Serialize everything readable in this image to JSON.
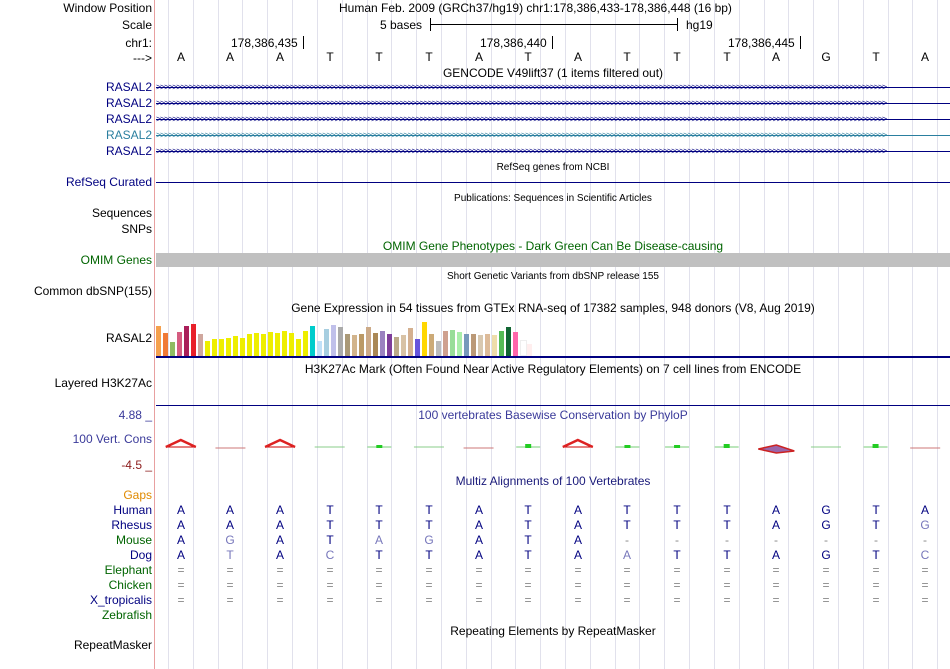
{
  "header": {
    "window_position_label": "Window Position",
    "scale_label": "Scale",
    "chrom_label": "chr1:",
    "arrow_label": "--->",
    "assembly_text": "Human Feb. 2009 (GRCh37/hg19)   chr1:178,386,433-178,386,448 (16 bp)",
    "scale_text": "5 bases",
    "db_text": "hg19",
    "positions": [
      "178,386,435",
      "178,386,440",
      "178,386,445"
    ]
  },
  "sequence": [
    "A",
    "A",
    "A",
    "T",
    "T",
    "T",
    "A",
    "T",
    "A",
    "T",
    "T",
    "T",
    "A",
    "G",
    "T",
    "A"
  ],
  "tracks": {
    "gencode_title": "GENCODE V49lift37 (1 items filtered out)",
    "gencode_items": [
      "RASAL2",
      "RASAL2",
      "RASAL2",
      "RASAL2",
      "RASAL2"
    ],
    "refseq_title": "RefSeq genes from NCBI",
    "refseq_label": "RefSeq Curated",
    "pubs_title": "Publications: Sequences in Scientific Articles",
    "sequences_label": "Sequences",
    "snps_label": "SNPs",
    "omim_title": "OMIM Gene Phenotypes - Dark Green Can Be Disease-causing",
    "omim_label": "OMIM Genes",
    "dbsnp_title": "Short Genetic Variants from dbSNP release 155",
    "dbsnp_label": "Common dbSNP(155)",
    "gtex_title": "Gene Expression in 54 tissues from GTEx RNA-seq of 17382 samples, 948 donors (V8, Aug 2019)",
    "gtex_label": "RASAL2",
    "h3k27ac_title": "H3K27Ac Mark (Often Found Near Active Regulatory Elements) on 7 cell lines from ENCODE",
    "h3k27ac_label": "Layered H3K27Ac",
    "phylop_title": "100 vertebrates Basewise Conservation by PhyloP",
    "phylop_label": "100 Vert. Cons",
    "phylop_max": "4.88 _",
    "phylop_min": "-4.5 _",
    "multiz_title": "Multiz Alignments of 100 Vertebrates",
    "gaps_label": "Gaps",
    "repeat_title": "Repeating Elements by RepeatMasker",
    "repeat_label": "RepeatMasker"
  },
  "gtex_bars": [
    {
      "h": 0.75,
      "c": "#f5a04d"
    },
    {
      "h": 0.58,
      "c": "#f07a36"
    },
    {
      "h": 0.35,
      "c": "#8fbc62"
    },
    {
      "h": 0.6,
      "c": "#d55c80"
    },
    {
      "h": 0.75,
      "c": "#aa1f5a"
    },
    {
      "h": 0.8,
      "c": "#e8202a"
    },
    {
      "h": 0.55,
      "c": "#cfa79e"
    },
    {
      "h": 0.38,
      "c": "#eeee00"
    },
    {
      "h": 0.42,
      "c": "#eeee00"
    },
    {
      "h": 0.42,
      "c": "#eeee00"
    },
    {
      "h": 0.45,
      "c": "#eeee00"
    },
    {
      "h": 0.5,
      "c": "#eeee00"
    },
    {
      "h": 0.45,
      "c": "#eeee00"
    },
    {
      "h": 0.55,
      "c": "#eeee00"
    },
    {
      "h": 0.58,
      "c": "#eeee00"
    },
    {
      "h": 0.55,
      "c": "#eeee00"
    },
    {
      "h": 0.6,
      "c": "#eeee00"
    },
    {
      "h": 0.58,
      "c": "#eeee00"
    },
    {
      "h": 0.62,
      "c": "#eeee00"
    },
    {
      "h": 0.58,
      "c": "#eeee00"
    },
    {
      "h": 0.42,
      "c": "#eeee00"
    },
    {
      "h": 0.62,
      "c": "#eeee00"
    },
    {
      "h": 0.75,
      "c": "#00cccc"
    },
    {
      "h": 0.38,
      "c": "#c0e0f8"
    },
    {
      "h": 0.68,
      "c": "#a7cee0"
    },
    {
      "h": 0.78,
      "c": "#c0c0ea"
    },
    {
      "h": 0.72,
      "c": "#aaaaaa"
    },
    {
      "h": 0.55,
      "c": "#aa9977"
    },
    {
      "h": 0.52,
      "c": "#d2b48c"
    },
    {
      "h": 0.55,
      "c": "#bb9966"
    },
    {
      "h": 0.72,
      "c": "#ccaa88"
    },
    {
      "h": 0.58,
      "c": "#aa8855"
    },
    {
      "h": 0.62,
      "c": "#9b82c0"
    },
    {
      "h": 0.55,
      "c": "#7f3e9a"
    },
    {
      "h": 0.48,
      "c": "#bbaa88"
    },
    {
      "h": 0.52,
      "c": "#d8c2a5"
    },
    {
      "h": 0.7,
      "c": "#d4b090"
    },
    {
      "h": 0.42,
      "c": "#6655dd"
    },
    {
      "h": 0.85,
      "c": "#ffd700"
    },
    {
      "h": 0.55,
      "c": "#ccaa77"
    },
    {
      "h": 0.38,
      "c": "#bbbbbb"
    },
    {
      "h": 0.62,
      "c": "#cfa08f"
    },
    {
      "h": 0.65,
      "c": "#99dd99"
    },
    {
      "h": 0.6,
      "c": "#aaeeaa"
    },
    {
      "h": 0.55,
      "c": "#7799bb"
    },
    {
      "h": 0.55,
      "c": "#bb9977"
    },
    {
      "h": 0.52,
      "c": "#d8c8b0"
    },
    {
      "h": 0.55,
      "c": "#ddbb99"
    },
    {
      "h": 0.52,
      "c": "#eeddaa"
    },
    {
      "h": 0.62,
      "c": "#55bb55"
    },
    {
      "h": 0.72,
      "c": "#116633"
    },
    {
      "h": 0.6,
      "c": "#ff66aa"
    },
    {
      "h": 0.35,
      "c": "#ffffff"
    },
    {
      "h": 0.3,
      "c": "#ffeeee"
    }
  ],
  "phylop": [
    {
      "v": 1.6
    },
    {
      "v": -0.1
    },
    {
      "v": 1.6
    },
    {
      "v": 0
    },
    {
      "v": 0.25
    },
    {
      "v": 0
    },
    {
      "v": -0.05
    },
    {
      "v": 0.3
    },
    {
      "v": 1.6
    },
    {
      "v": 0.15
    },
    {
      "v": 0.15
    },
    {
      "v": 0.35
    },
    {
      "v": -0.8
    },
    {
      "v": 0
    },
    {
      "v": 0.3
    },
    {
      "v": -0.05
    }
  ],
  "multiz": {
    "species": [
      "Human",
      "Rhesus",
      "Mouse",
      "Dog",
      "Elephant",
      "Chicken",
      "X_tropicalis",
      "Zebrafish"
    ],
    "rows": [
      [
        "A",
        "A",
        "A",
        "T",
        "T",
        "T",
        "A",
        "T",
        "A",
        "T",
        "T",
        "T",
        "A",
        "G",
        "T",
        "A"
      ],
      [
        "A",
        "A",
        "A",
        "T",
        "T",
        "T",
        "A",
        "T",
        "A",
        "T",
        "T",
        "T",
        "A",
        "G",
        "T",
        "G"
      ],
      [
        "A",
        "G",
        "A",
        "T",
        "A",
        "G",
        "A",
        "T",
        "A",
        "-",
        "-",
        "-",
        "-",
        "-",
        "-",
        "-"
      ],
      [
        "A",
        "T",
        "A",
        "C",
        "T",
        "T",
        "A",
        "T",
        "A",
        "A",
        "T",
        "T",
        "A",
        "G",
        "T",
        "C"
      ],
      [
        "=",
        "=",
        "=",
        "=",
        "=",
        "=",
        "=",
        "=",
        "=",
        "=",
        "=",
        "=",
        "=",
        "=",
        "=",
        "="
      ],
      [
        "=",
        "=",
        "=",
        "=",
        "=",
        "=",
        "=",
        "=",
        "=",
        "=",
        "=",
        "=",
        "=",
        "=",
        "=",
        "="
      ],
      [
        "=",
        "=",
        "=",
        "=",
        "=",
        "=",
        "=",
        "=",
        "=",
        "=",
        "=",
        "=",
        "=",
        "=",
        "=",
        "="
      ],
      [
        "",
        "",
        "",
        "",
        "",
        "",
        "",
        "",
        "",
        "",
        "",
        "",
        "",
        "",
        "",
        ""
      ]
    ]
  },
  "colors": {
    "gene_blue": "#000080",
    "gene_teal": "#2a7f9f",
    "omim_green": "#006400",
    "gaps_orange": "#e08a00",
    "phylop_max": "#3a3a9a",
    "phylop_min": "#8b1a1a",
    "phylop_title": "#3a3a9a",
    "multiz_title": "#1a1a7a"
  }
}
